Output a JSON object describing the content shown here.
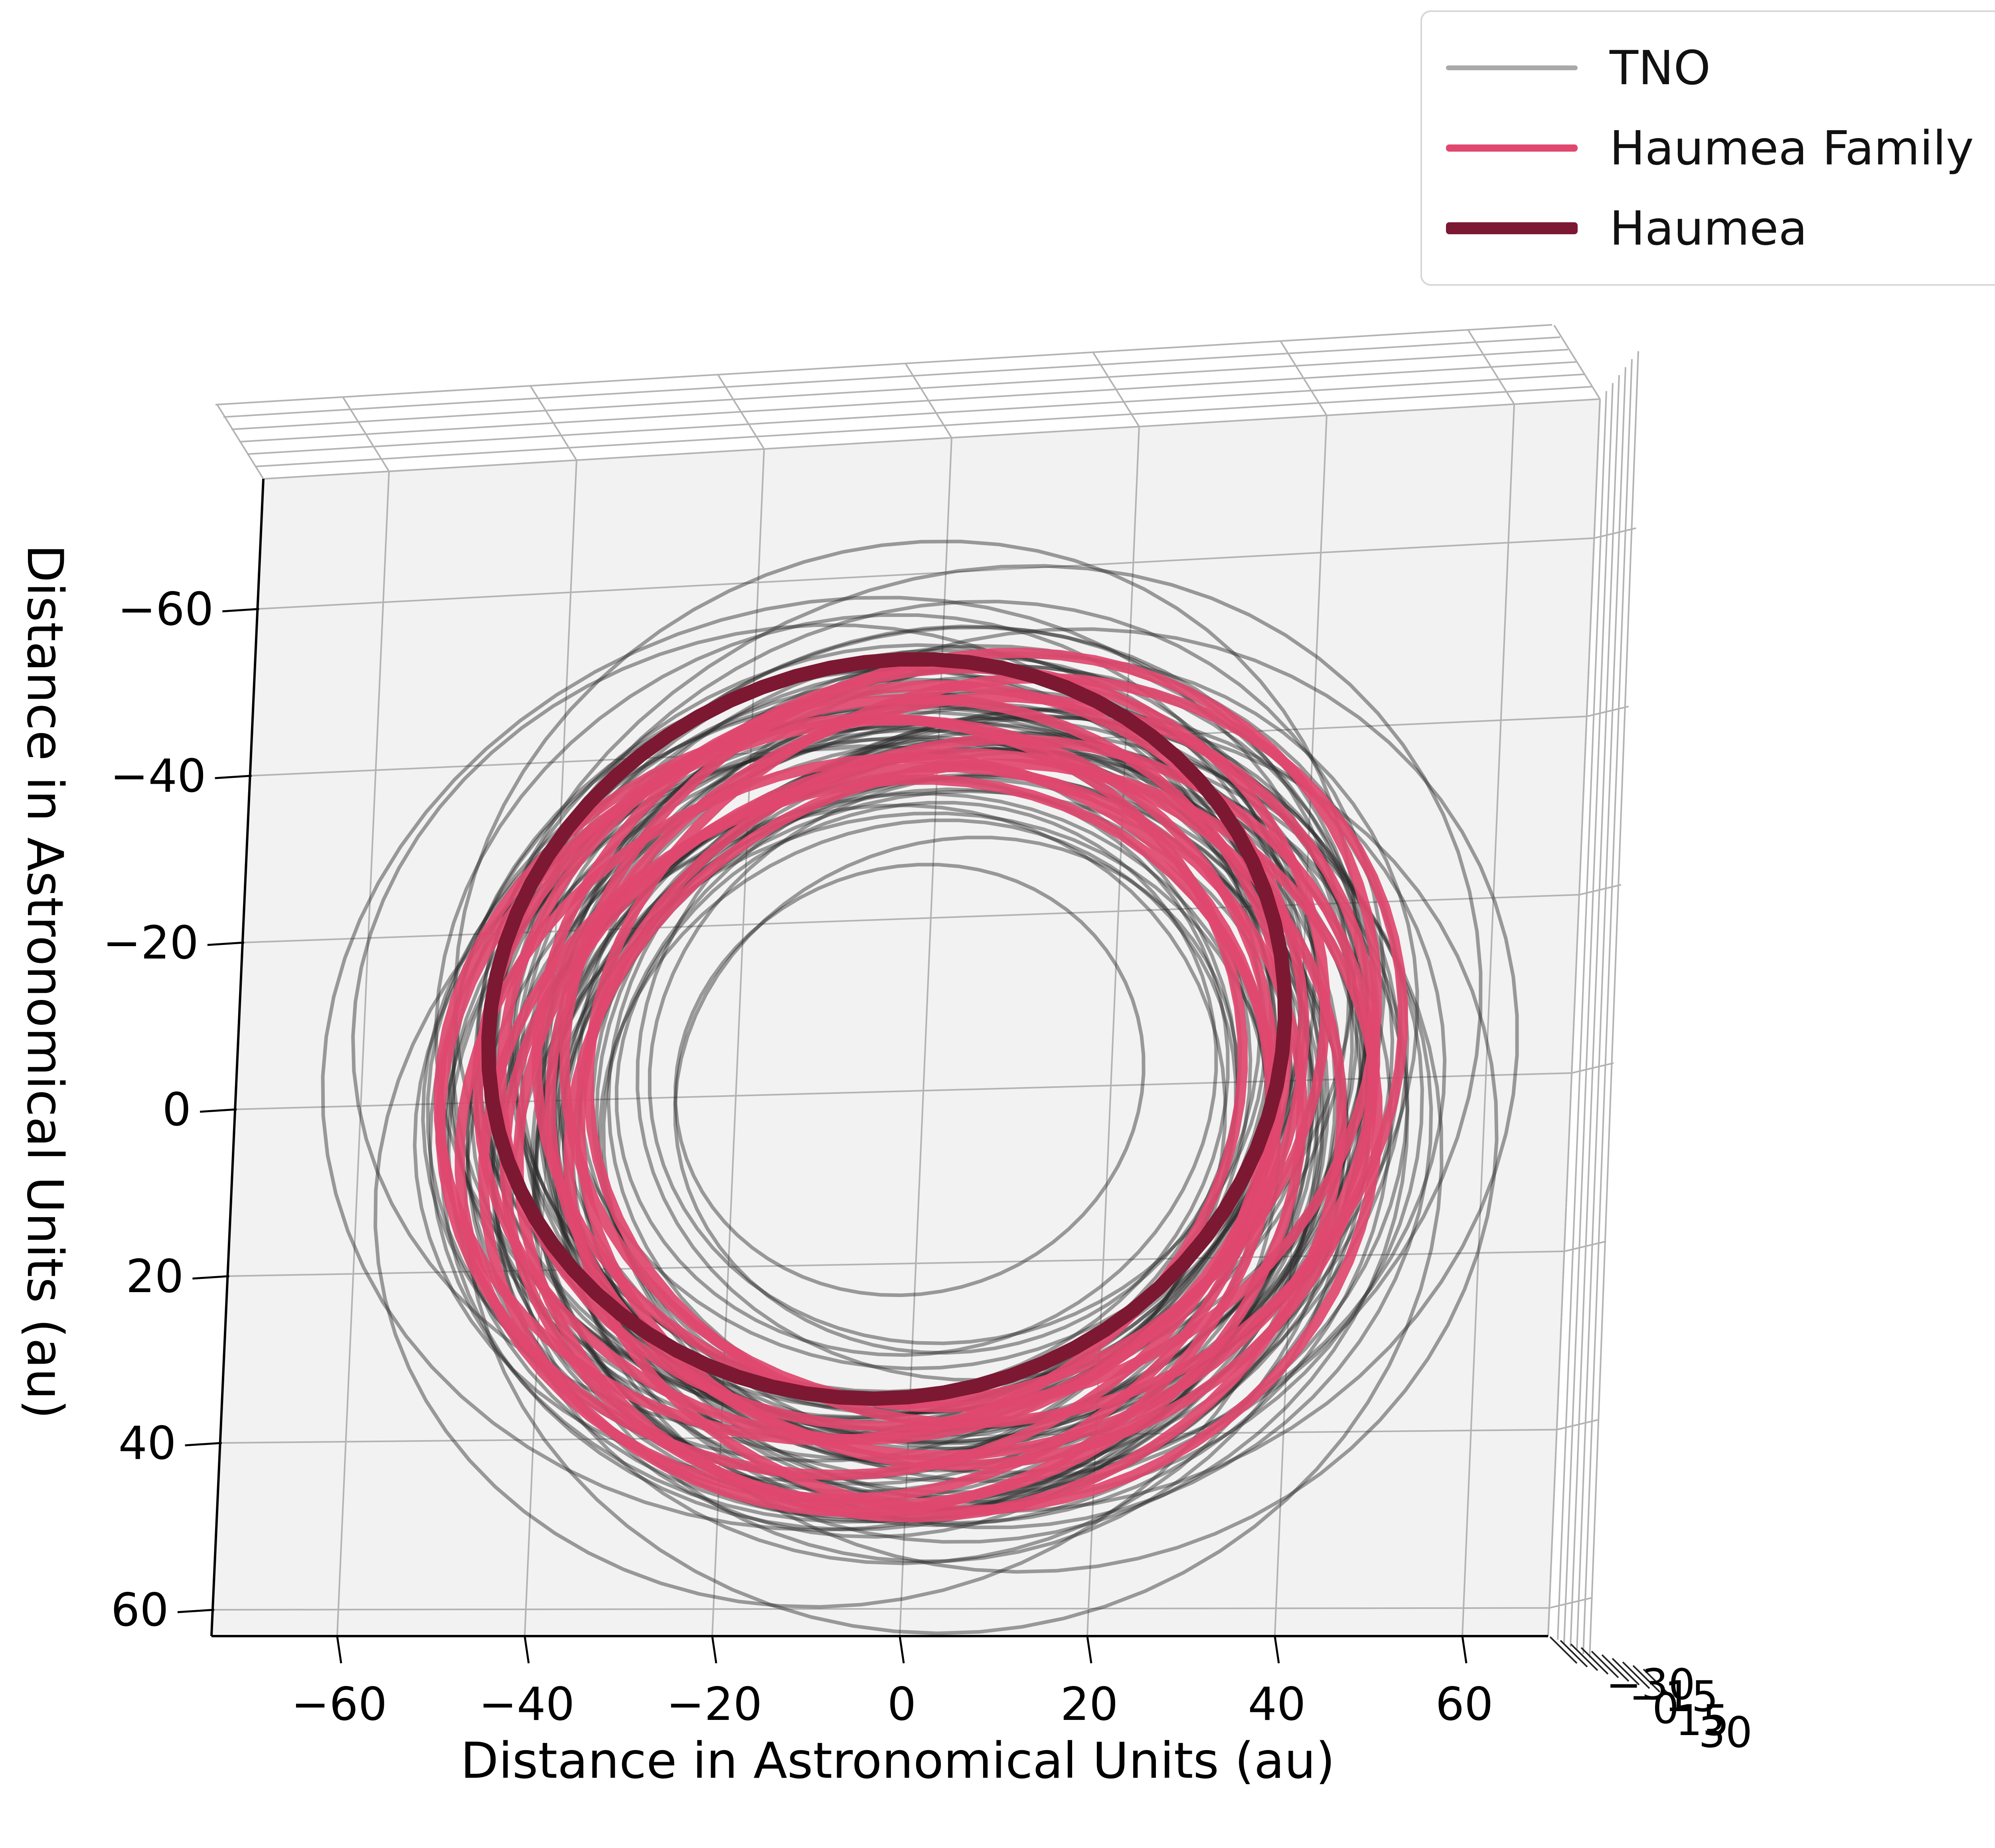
{
  "figure": {
    "background": "#ffffff",
    "pane_color": "#f2f2f2",
    "grid_color": "#b3b3b3",
    "spine_color": "#000000",
    "legend": {
      "entries": [
        {
          "id": "tno",
          "label": "TNO",
          "color": "#a9a9a9",
          "line_width": 12
        },
        {
          "id": "haumea-family",
          "label": "Haumea Family",
          "color": "#e0486f",
          "line_width": 18
        },
        {
          "id": "haumea",
          "label": "Haumea",
          "color": "#7c1832",
          "line_width": 30
        }
      ]
    },
    "axes": {
      "xlabel": "Distance in Astronomical Units (au)",
      "ylabel": "Distance in Astronomical Units (au)",
      "x_tick_labels": [
        "−60",
        "−40",
        "−20",
        "0",
        "20",
        "40",
        "60"
      ],
      "y_tick_labels": [
        "−60",
        "−40",
        "−20",
        "0",
        "20",
        "40",
        "60"
      ],
      "z_tick_labels": [
        "−30",
        "−15",
        "0",
        "15",
        "30"
      ]
    }
  },
  "chart_data": {
    "type": "line",
    "projection": "3d-top-down-orbit-plot",
    "title": "",
    "xlabel": "Distance in Astronomical Units (au)",
    "ylabel": "Distance in Astronomical Units (au)",
    "units": "au",
    "x_ticks": [
      -60,
      -40,
      -20,
      0,
      20,
      40,
      60
    ],
    "y_ticks": [
      -60,
      -40,
      -20,
      0,
      20,
      40,
      60
    ],
    "z_ticks": [
      -30,
      -15,
      0,
      15,
      30
    ],
    "xlim": [
      -73,
      69
    ],
    "ylim": [
      -76,
      63
    ],
    "grid": true,
    "legend_position": "upper right",
    "orbit_format": [
      "semi_major_axis_au",
      "eccentricity",
      "orientation_deg"
    ],
    "series": [
      {
        "name": "TNO",
        "color": "#2b2b2b",
        "opacity": 0.45,
        "line_width": 9,
        "orbits": [
          [
            44,
            0.1,
            15
          ],
          [
            42,
            0.18,
            70
          ],
          [
            45,
            0.12,
            130
          ],
          [
            43,
            0.22,
            200
          ],
          [
            46,
            0.08,
            255
          ],
          [
            41,
            0.15,
            310
          ],
          [
            44,
            0.2,
            40
          ],
          [
            47,
            0.14,
            95
          ],
          [
            43,
            0.09,
            160
          ],
          [
            45,
            0.17,
            225
          ],
          [
            42,
            0.24,
            285
          ],
          [
            46,
            0.11,
            340
          ],
          [
            44,
            0.16,
            25
          ],
          [
            43,
            0.13,
            85
          ],
          [
            45,
            0.21,
            145
          ],
          [
            42,
            0.07,
            210
          ],
          [
            46,
            0.19,
            270
          ],
          [
            44,
            0.12,
            330
          ],
          [
            47,
            0.23,
            55
          ],
          [
            41,
            0.1,
            115
          ],
          [
            43,
            0.18,
            175
          ],
          [
            45,
            0.14,
            240
          ],
          [
            42,
            0.2,
            300
          ],
          [
            46,
            0.15,
            5
          ],
          [
            39.5,
            0.25,
            150
          ],
          [
            39.4,
            0.22,
            320
          ],
          [
            48,
            0.18,
            100
          ],
          [
            40,
            0.12,
            230
          ],
          [
            44.5,
            0.19,
            62
          ],
          [
            43.7,
            0.11,
            122
          ],
          [
            45.2,
            0.23,
            182
          ],
          [
            42.6,
            0.16,
            242
          ],
          [
            46.4,
            0.09,
            302
          ],
          [
            44.1,
            0.21,
            2
          ],
          [
            43.3,
            0.15,
            47
          ],
          [
            45.7,
            0.13,
            107
          ],
          [
            41.8,
            0.2,
            167
          ],
          [
            46.8,
            0.17,
            227
          ],
          [
            44.8,
            0.1,
            287
          ],
          [
            43.9,
            0.24,
            347
          ],
          [
            42.2,
            0.13,
            32
          ],
          [
            45.5,
            0.18,
            92
          ],
          [
            44.3,
            0.08,
            152
          ],
          [
            46.1,
            0.22,
            212
          ],
          [
            41.5,
            0.16,
            272
          ],
          [
            47.5,
            0.12,
            332
          ],
          [
            43.1,
            0.19,
            77
          ],
          [
            45.9,
            0.15,
            137
          ],
          [
            42.9,
            0.11,
            197
          ],
          [
            44.6,
            0.23,
            257
          ],
          [
            46.6,
            0.14,
            317
          ],
          [
            40.8,
            0.18,
            17
          ],
          [
            43.6,
            0.1,
            142
          ],
          [
            45.1,
            0.2,
            202
          ],
          [
            42.4,
            0.15,
            262
          ],
          [
            46.2,
            0.12,
            322
          ],
          [
            44.9,
            0.17,
            37
          ],
          [
            41.2,
            0.22,
            97
          ],
          [
            47.2,
            0.1,
            157
          ],
          [
            43.2,
            0.14,
            217
          ],
          [
            55,
            0.18,
            20
          ],
          [
            52,
            0.22,
            170
          ],
          [
            50,
            0.28,
            80
          ],
          [
            53,
            0.2,
            250
          ],
          [
            51,
            0.24,
            310
          ],
          [
            49,
            0.3,
            30
          ],
          [
            54,
            0.16,
            130
          ],
          [
            50.5,
            0.26,
            210
          ],
          [
            32,
            0.05,
            60
          ],
          [
            30,
            0.12,
            190
          ],
          [
            34,
            0.08,
            280
          ],
          [
            36,
            0.1,
            10
          ],
          [
            33,
            0.15,
            135
          ],
          [
            25,
            0.08,
            40
          ]
        ]
      },
      {
        "name": "Haumea Family",
        "color": "#e0486f",
        "opacity": 0.92,
        "line_width": 26,
        "orbits": [
          [
            43.2,
            0.12,
            30
          ],
          [
            42.5,
            0.15,
            95
          ],
          [
            44.0,
            0.1,
            160
          ],
          [
            43.5,
            0.18,
            225
          ],
          [
            42.8,
            0.13,
            290
          ],
          [
            44.4,
            0.16,
            355
          ],
          [
            43.0,
            0.11,
            60
          ],
          [
            43.8,
            0.19,
            125
          ],
          [
            42.3,
            0.14,
            195
          ],
          [
            44.2,
            0.12,
            260
          ],
          [
            43.4,
            0.17,
            325
          ],
          [
            42.9,
            0.21,
            10
          ],
          [
            43.6,
            0.2,
            150
          ],
          [
            42.7,
            0.18,
            305
          ]
        ]
      },
      {
        "name": "Haumea",
        "color": "#7c1832",
        "opacity": 1,
        "line_width": 36,
        "orbits": [
          [
            43.1,
            0.195,
            60
          ]
        ]
      }
    ]
  }
}
